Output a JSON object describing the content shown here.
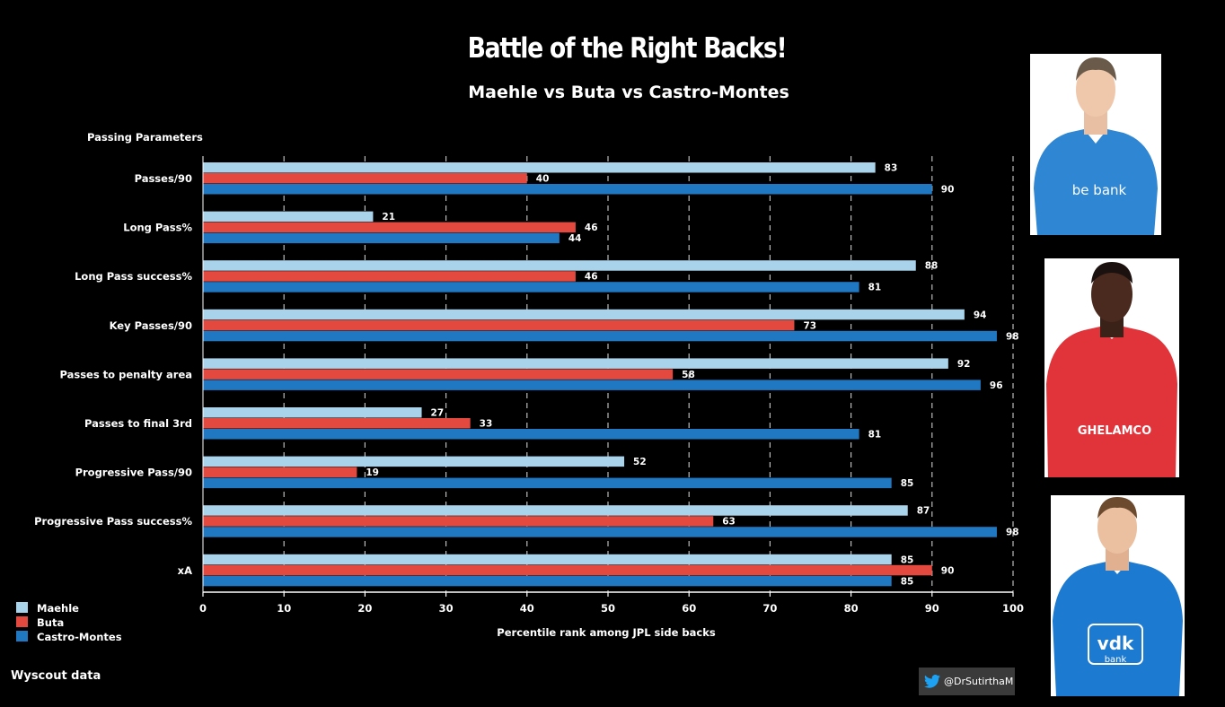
{
  "title": "Battle of the Right Backs!",
  "subtitle": "Maehle vs Buta vs Castro-Montes",
  "source_note": "Wyscout data",
  "twitter_handle": "@DrSutirthaM",
  "colors": {
    "background": "#000000",
    "maehle": "#a8d3ea",
    "buta": "#e3493f",
    "castro_montes": "#1f78c1",
    "grid": "#bbbbbb"
  },
  "chart_data": {
    "type": "bar",
    "orientation": "horizontal",
    "title": "Battle of the Right Backs!",
    "subtitle": "Maehle vs Buta vs Castro-Montes",
    "category_axis_title": "Passing Parameters",
    "xlabel": "Percentile rank among  JPL side backs",
    "xlim": [
      0,
      100
    ],
    "xticks": [
      0,
      10,
      20,
      30,
      40,
      50,
      60,
      70,
      80,
      90,
      100
    ],
    "grid": "vertical dashed",
    "legend_position": "bottom-left",
    "categories": [
      "Passes/90",
      "Long Pass%",
      "Long Pass success%",
      "Key Passes/90",
      "Passes to penalty area",
      "Passes to final 3rd",
      "Progressive Pass/90",
      "Progressive Pass success%",
      "xA"
    ],
    "series": [
      {
        "name": "Maehle",
        "color": "#a8d3ea",
        "values": [
          83,
          21,
          88,
          94,
          92,
          27,
          52,
          87,
          85
        ]
      },
      {
        "name": "Buta",
        "color": "#e3493f",
        "values": [
          40,
          46,
          46,
          73,
          58,
          33,
          19,
          63,
          90
        ]
      },
      {
        "name": "Castro-Montes",
        "color": "#1f78c1",
        "values": [
          90,
          44,
          81,
          98,
          96,
          81,
          85,
          98,
          85
        ]
      }
    ]
  },
  "photos": [
    {
      "player": "Maehle",
      "shirt_color": "#2f86d3",
      "sponsor": "be bank"
    },
    {
      "player": "Buta",
      "shirt_color": "#e0343a",
      "sponsor": "GHELAMCO"
    },
    {
      "player": "Castro-Montes",
      "shirt_color": "#1c7ad1",
      "sponsor": "vdk bank"
    }
  ]
}
